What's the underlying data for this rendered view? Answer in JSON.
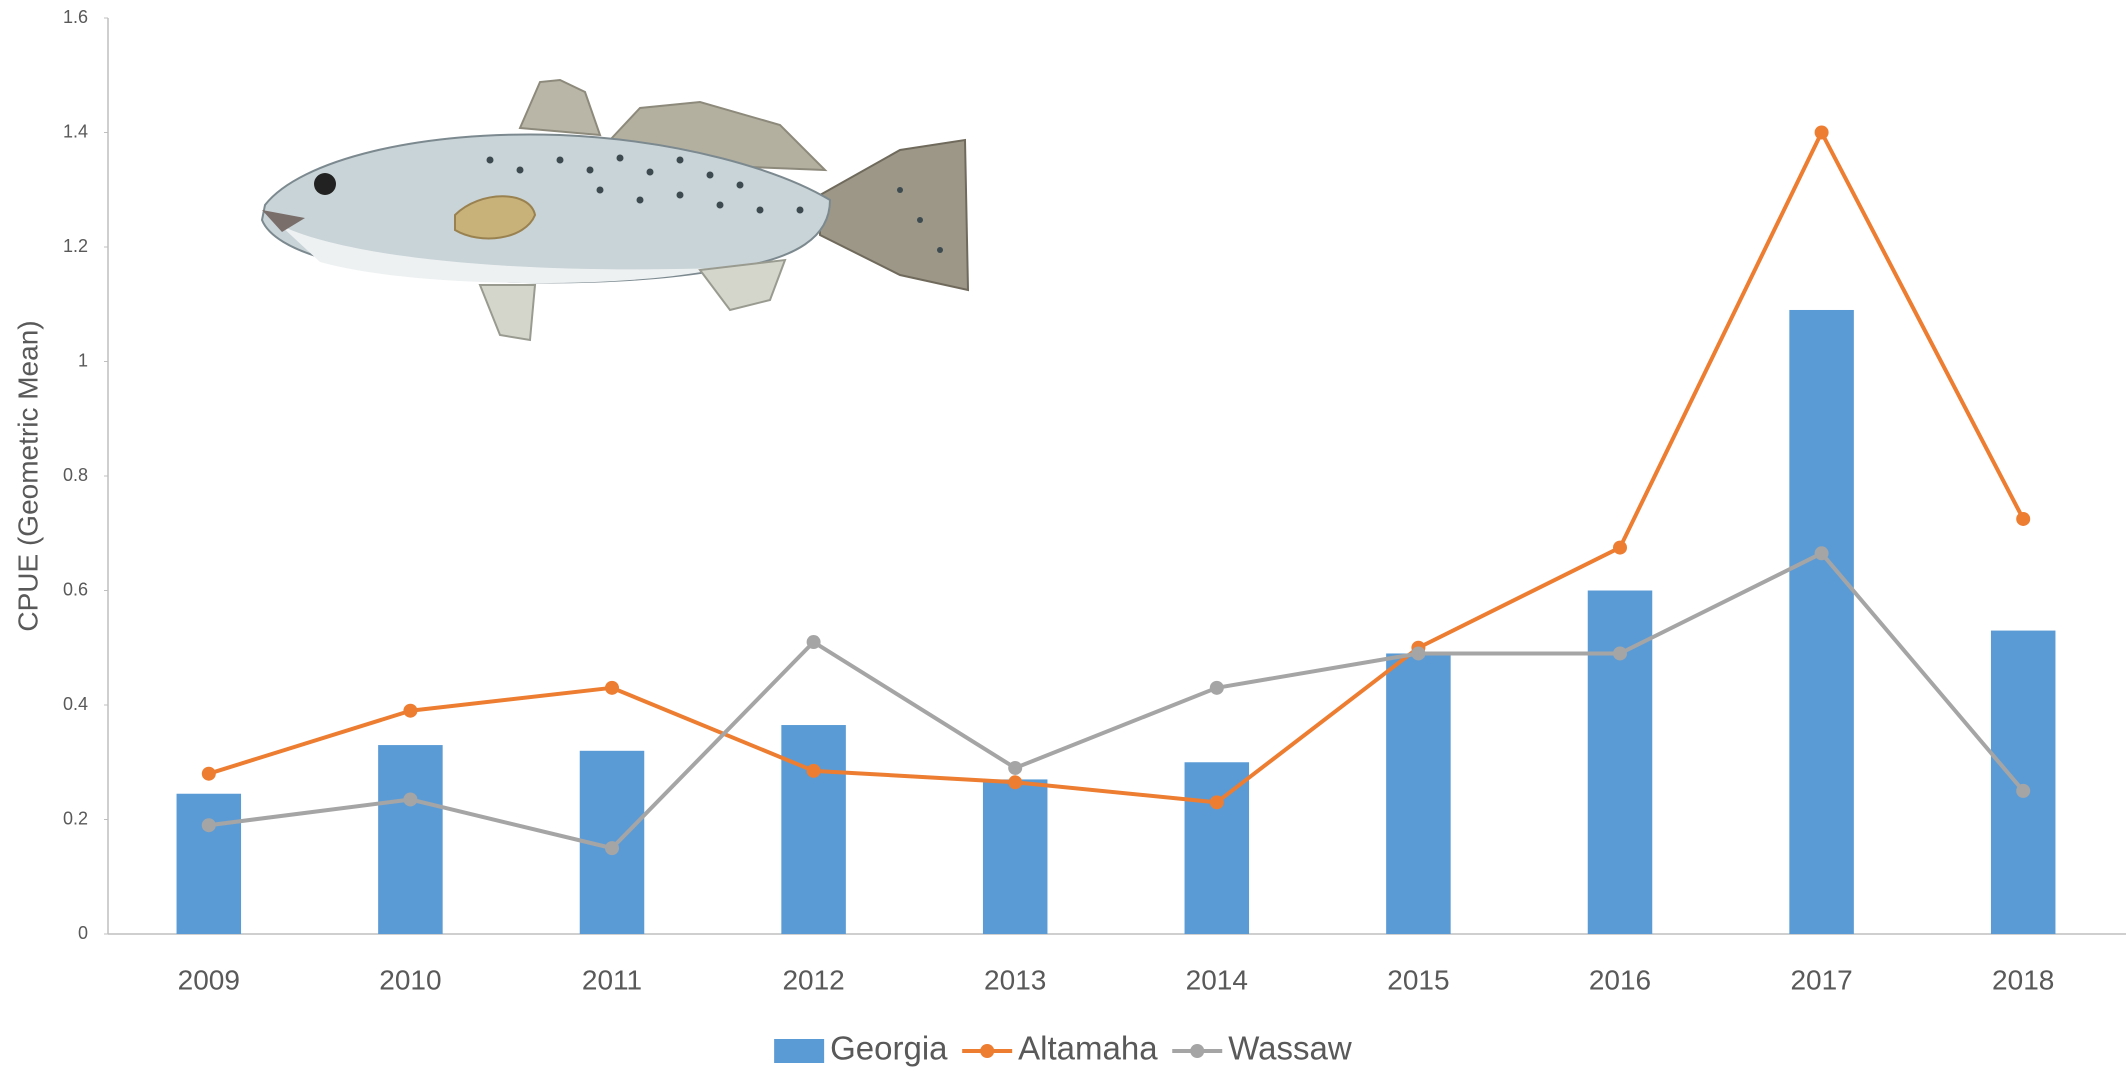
{
  "chart_data": {
    "type": "bar",
    "y_label": "CPUE (Geometric Mean)",
    "categories": [
      "2009",
      "2010",
      "2011",
      "2012",
      "2013",
      "2014",
      "2015",
      "2016",
      "2017",
      "2018"
    ],
    "series": [
      {
        "name": "Georgia",
        "type": "bar",
        "color": "#5b9bd5",
        "values": [
          0.245,
          0.33,
          0.32,
          0.365,
          0.27,
          0.3,
          0.49,
          0.6,
          1.09,
          0.53
        ]
      },
      {
        "name": "Altamaha",
        "type": "line",
        "color": "#ed7d31",
        "values": [
          0.28,
          0.39,
          0.43,
          0.285,
          0.265,
          0.23,
          0.5,
          0.675,
          1.4,
          0.725
        ]
      },
      {
        "name": "Wassaw",
        "type": "line",
        "color": "#a5a5a5",
        "values": [
          0.19,
          0.235,
          0.15,
          0.51,
          0.29,
          0.43,
          0.49,
          0.49,
          0.665,
          0.25
        ]
      }
    ],
    "ylim": [
      0,
      1.6
    ],
    "yticks": [
      0,
      0.2,
      0.4,
      0.6,
      0.8,
      1,
      1.2,
      1.4,
      1.6
    ],
    "grid": false,
    "legend": "bottom"
  }
}
